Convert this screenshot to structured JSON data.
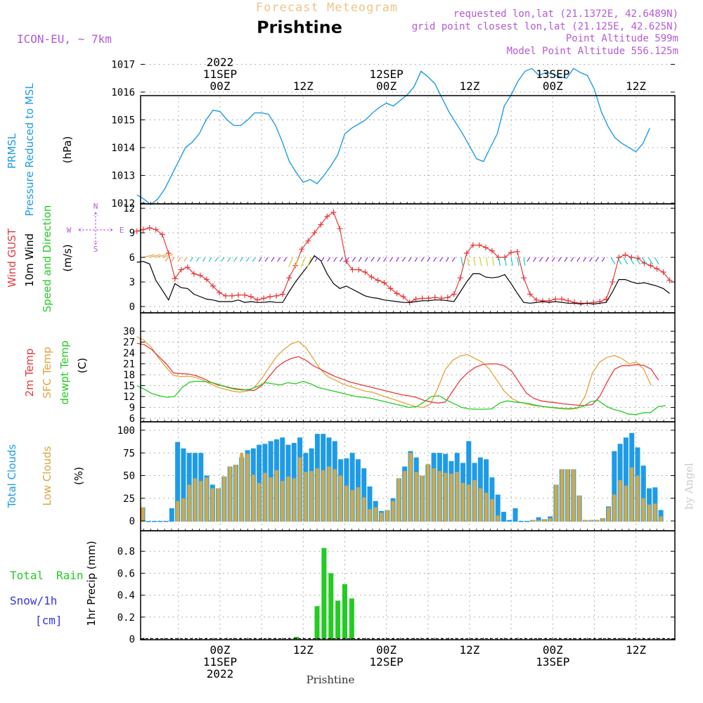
{
  "header": {
    "product": "Forecast Meteogram",
    "location": "Prishtine",
    "model": "ICON-EU, ~ 7km",
    "requested": "requested lon,lat (21.1372E, 42.6489N)",
    "grid_point": "grid point closest lon,lat (21.125E, 42.625N)",
    "point_altitude": "Point Altitude 599m",
    "model_altitude": "Model Point Altitude 556.125m",
    "footer_location": "Prishtine",
    "credit": "by Angel"
  },
  "colors": {
    "pressure": "#1e9be6",
    "gust": "#e8393a",
    "wind": "#000000",
    "temp": "#e8393a",
    "sfc_temp": "#e3a33c",
    "dewpt": "#22cc22",
    "total_clouds": "#1e9be6",
    "low_clouds": "#d4a843",
    "rain": "#22cc22",
    "snow": "#3333ee",
    "header_orange": "#f0c48a",
    "header_purple": "#b45ad6"
  },
  "time_axis": {
    "top_labels": [
      {
        "h": 24,
        "lines": [
          "2022",
          "11SEP",
          "00Z"
        ]
      },
      {
        "h": 36,
        "lines": [
          "12Z"
        ]
      },
      {
        "h": 48,
        "lines": [
          "12SEP",
          "00Z"
        ]
      },
      {
        "h": 60,
        "lines": [
          "12Z"
        ]
      },
      {
        "h": 72,
        "lines": [
          "13SEP",
          "00Z"
        ]
      },
      {
        "h": 84,
        "lines": [
          "12Z"
        ]
      }
    ],
    "bottom_labels": [
      {
        "h": 24,
        "lines": [
          "00Z",
          "11SEP",
          "2022"
        ]
      },
      {
        "h": 36,
        "lines": [
          "12Z"
        ]
      },
      {
        "h": 48,
        "lines": [
          "00Z",
          "12SEP"
        ]
      },
      {
        "h": 60,
        "lines": [
          "12Z"
        ]
      },
      {
        "h": 72,
        "lines": [
          "00Z",
          "13SEP"
        ]
      },
      {
        "h": 84,
        "lines": [
          "12Z"
        ]
      }
    ]
  },
  "chart_data": [
    {
      "type": "line",
      "title": "PRMSL Pressure Reduced to MSL",
      "ylabel": "(hPa)",
      "label_lines": [
        "PRMSL",
        "Pressure Reduced to MSL"
      ],
      "units": "(hPa)",
      "ylim": [
        1011.8,
        1017.15
      ],
      "yticks": [
        1012,
        1013,
        1014,
        1015,
        1016,
        1017
      ],
      "x_hours_start": 12,
      "series": [
        {
          "name": "PRMSL",
          "values": [
            1012.3,
            1012.15,
            1011.95,
            1012.15,
            1012.5,
            1013.0,
            1013.5,
            1014.0,
            1014.2,
            1014.5,
            1015.0,
            1015.35,
            1015.3,
            1015.0,
            1014.8,
            1014.8,
            1015.0,
            1015.25,
            1015.25,
            1015.2,
            1014.8,
            1014.2,
            1013.5,
            1013.1,
            1012.75,
            1012.85,
            1012.7,
            1013.0,
            1013.35,
            1013.75,
            1014.5,
            1014.7,
            1014.85,
            1015.0,
            1015.25,
            1015.45,
            1015.6,
            1015.5,
            1015.7,
            1015.9,
            1016.2,
            1016.75,
            1016.55,
            1016.3,
            1015.8,
            1015.3,
            1014.9,
            1014.5,
            1014.05,
            1013.6,
            1013.5,
            1014.0,
            1014.5,
            1015.5,
            1015.9,
            1016.4,
            1016.75,
            1016.85,
            1016.6,
            1016.7,
            1016.65,
            1016.55,
            1016.5,
            1016.85,
            1016.7,
            1016.6,
            1016.1,
            1015.3,
            1014.75,
            1014.35,
            1014.15,
            1014.0,
            1013.85,
            1014.15,
            1014.7
          ]
        }
      ]
    },
    {
      "type": "line",
      "title": "Wind GUST / 10m Wind Speed and Direction",
      "ylabel": "(m/s)",
      "label_lines": [
        "Wind GUST",
        "10m Wind",
        "Speed and Direction"
      ],
      "units": "(m/s)",
      "ylim": [
        0,
        12.3
      ],
      "yticks": [
        0,
        3,
        6,
        9,
        12
      ],
      "x_hours_start": 12,
      "compass": [
        "N",
        "W",
        "E",
        "S"
      ],
      "series": [
        {
          "name": "Wind GUST",
          "values": [
            9.2,
            9.4,
            9.6,
            9.4,
            8.8,
            6.5,
            3.4,
            4.5,
            4.8,
            4.0,
            3.8,
            3.3,
            2.5,
            1.7,
            1.3,
            1.3,
            1.4,
            1.4,
            1.2,
            0.8,
            1.0,
            1.2,
            1.3,
            1.5,
            3.5,
            5.0,
            7.0,
            8.0,
            9.0,
            10.0,
            11.0,
            11.5,
            9.5,
            5.5,
            4.5,
            4.5,
            4.2,
            3.6,
            3.2,
            2.9,
            2.2,
            1.6,
            1.2,
            0.5,
            0.9,
            1.0,
            1.0,
            1.1,
            1.0,
            1.1,
            1.5,
            3.5,
            6.5,
            7.5,
            7.5,
            7.2,
            6.8,
            6.0,
            6.0,
            6.6,
            6.7,
            3.5,
            1.5,
            0.8,
            0.7,
            0.7,
            0.9,
            0.9,
            0.7,
            0.5,
            0.4,
            0.4,
            0.5,
            0.6,
            0.9,
            3.0,
            6.0,
            6.3,
            6.0,
            5.9,
            5.3,
            5.0,
            4.6,
            4.2,
            3.2
          ]
        },
        {
          "name": "10m Wind",
          "values": [
            5.4,
            5.5,
            5.2,
            3.2,
            2.0,
            0.8,
            2.8,
            2.3,
            2.2,
            1.5,
            1.2,
            0.9,
            0.8,
            0.6,
            0.6,
            0.6,
            0.8,
            0.5,
            0.6,
            0.5,
            0.5,
            0.6,
            0.5,
            0.5,
            1.8,
            3.0,
            4.0,
            5.0,
            6.2,
            5.6,
            4.0,
            2.8,
            2.2,
            2.5,
            2.1,
            1.7,
            1.3,
            1.1,
            1.0,
            0.8,
            0.7,
            0.6,
            0.5,
            0.5,
            0.6,
            0.7,
            0.7,
            0.8,
            0.8,
            0.7,
            0.6,
            1.8,
            3.0,
            4.0,
            4.0,
            3.6,
            3.5,
            3.6,
            3.9,
            2.8,
            1.6,
            0.5,
            0.4,
            0.5,
            0.6,
            0.5,
            0.6,
            0.5,
            0.4,
            0.4,
            0.3,
            0.4,
            0.3,
            0.4,
            0.5,
            1.8,
            3.3,
            3.3,
            3.0,
            2.8,
            2.9,
            2.7,
            2.5,
            2.2,
            1.6
          ]
        }
      ]
    },
    {
      "type": "line",
      "title": "2m Temp / SFC Temp / dewpt Temp",
      "ylabel": "(C)",
      "label_lines": [
        "2m Temp",
        "SFC Temp",
        "dewpt Temp"
      ],
      "units": "(C)",
      "ylim": [
        6,
        30
      ],
      "yticks": [
        6,
        9,
        12,
        15,
        18,
        21,
        24,
        27,
        30
      ],
      "x_hours_start": 12,
      "series": [
        {
          "name": "2m Temp",
          "values": [
            26.7,
            26.3,
            25.0,
            23.0,
            21.0,
            18.5,
            18.3,
            18.2,
            17.8,
            17.0,
            16.0,
            15.2,
            14.8,
            14.3,
            14.0,
            13.8,
            13.7,
            15.0,
            17.5,
            20.0,
            21.5,
            22.5,
            23.0,
            22.0,
            20.5,
            19.5,
            18.5,
            17.5,
            16.8,
            16.0,
            15.5,
            15.0,
            14.5,
            14.0,
            13.5,
            13.0,
            12.5,
            12.2,
            11.8,
            11.0,
            10.5,
            10.2,
            10.5,
            13.5,
            16.5,
            18.5,
            20.0,
            20.8,
            21.0,
            21.0,
            20.5,
            19.0,
            16.0,
            13.0,
            11.5,
            10.8,
            10.5,
            10.3,
            10.0,
            9.8,
            9.6,
            9.5,
            9.8,
            12.0,
            16.0,
            19.5,
            20.5,
            20.5,
            20.8,
            20.6,
            19.5,
            16.5
          ]
        },
        {
          "name": "SFC Temp",
          "values": [
            28.5,
            27.5,
            25.5,
            22.5,
            20.0,
            17.8,
            17.5,
            17.6,
            17.3,
            16.5,
            15.5,
            14.6,
            14.0,
            13.5,
            13.2,
            13.5,
            14.5,
            17.0,
            20.0,
            23.0,
            25.0,
            26.5,
            27.2,
            25.5,
            22.5,
            19.5,
            17.5,
            16.5,
            15.5,
            14.8,
            14.2,
            13.5,
            13.2,
            12.5,
            11.8,
            11.2,
            10.5,
            9.8,
            9.2,
            9.0,
            10.0,
            14.5,
            19.5,
            22.0,
            23.2,
            23.6,
            22.5,
            21.5,
            19.5,
            16.5,
            13.5,
            11.5,
            10.5,
            10.0,
            9.5,
            9.3,
            9.0,
            8.8,
            8.6,
            8.5,
            8.8,
            12.0,
            18.5,
            21.5,
            22.8,
            23.3,
            22.5,
            21.0,
            21.5,
            19.5,
            15.0
          ]
        },
        {
          "name": "dewpt Temp",
          "values": [
            15.0,
            14.0,
            12.8,
            12.2,
            11.8,
            12.0,
            14.5,
            16.0,
            16.2,
            16.1,
            15.8,
            15.2,
            14.5,
            14.0,
            13.8,
            14.0,
            14.8,
            15.8,
            15.5,
            15.2,
            15.8,
            15.5,
            16.2,
            15.5,
            14.5,
            14.0,
            13.5,
            13.0,
            12.5,
            12.0,
            11.8,
            11.5,
            11.0,
            10.5,
            10.0,
            9.5,
            9.0,
            9.2,
            10.5,
            12.0,
            12.2,
            11.0,
            10.0,
            9.0,
            8.6,
            8.5,
            8.5,
            8.6,
            10.2,
            10.8,
            10.5,
            10.3,
            10.0,
            9.5,
            9.2,
            9.0,
            8.8,
            8.7,
            8.8,
            9.2,
            10.5,
            11.0,
            9.5,
            8.5,
            8.0,
            7.2,
            7.0,
            7.5,
            7.6,
            9.2,
            9.5
          ]
        }
      ]
    },
    {
      "type": "bar",
      "title": "Total Clouds / Low Clouds",
      "ylabel": "(%)",
      "label_lines": [
        "Total Clouds",
        "Low Clouds"
      ],
      "units": "(%)",
      "ylim": [
        -5,
        106
      ],
      "yticks": [
        0,
        25,
        50,
        75,
        100
      ],
      "x_hours_start": 12,
      "series": [
        {
          "name": "Total Clouds",
          "values": [
            55,
            15,
            0,
            0,
            0,
            0,
            14,
            87,
            80,
            75,
            75,
            75,
            50,
            40,
            36,
            49,
            60,
            62,
            70,
            78,
            80,
            84,
            85,
            88,
            90,
            92,
            84,
            86,
            92,
            75,
            80,
            96,
            96,
            92,
            88,
            68,
            69,
            75,
            68,
            58,
            38,
            22,
            11,
            12,
            25,
            47,
            60,
            77,
            70,
            50,
            62,
            75,
            75,
            74,
            66,
            75,
            64,
            88,
            64,
            70,
            68,
            48,
            29,
            10,
            1,
            14,
            0,
            0,
            1,
            4,
            2,
            5,
            40,
            57,
            57,
            57,
            28,
            1,
            1,
            1,
            3,
            16,
            77,
            85,
            92,
            97,
            81,
            61,
            36,
            37,
            12
          ]
        },
        {
          "name": "Low Clouds",
          "values": [
            48,
            15,
            0,
            0,
            0,
            0,
            0,
            22,
            25,
            40,
            47,
            44,
            48,
            36,
            36,
            49,
            60,
            62,
            75,
            74,
            51,
            42,
            53,
            48,
            56,
            44,
            49,
            47,
            70,
            54,
            55,
            58,
            56,
            60,
            57,
            50,
            39,
            34,
            37,
            26,
            13,
            15,
            9,
            12,
            22,
            47,
            55,
            75,
            54,
            50,
            63,
            58,
            55,
            53,
            52,
            54,
            42,
            40,
            45,
            36,
            31,
            24,
            6,
            0,
            0,
            0,
            0,
            0,
            1,
            1,
            2,
            3,
            40,
            57,
            57,
            57,
            28,
            1,
            1,
            1,
            3,
            15,
            29,
            45,
            39,
            59,
            50,
            25,
            18,
            19,
            5
          ]
        }
      ]
    },
    {
      "type": "bar",
      "title": "1hr Precip (mm)",
      "ylabel": "1hr Precip (mm)",
      "label_lines": [
        "Total",
        "Rain",
        "Snow/1h",
        "[cm]"
      ],
      "units": "1hr Precip (mm)",
      "ylim": [
        0,
        0.94
      ],
      "yticks": [
        0,
        0.2,
        0.4,
        0.6,
        0.8
      ],
      "x_hours_start": 12,
      "series": [
        {
          "name": "Total Rain",
          "values": [
            0,
            0,
            0,
            0,
            0,
            0,
            0,
            0,
            0,
            0,
            0,
            0,
            0,
            0,
            0,
            0,
            0,
            0,
            0,
            0,
            0,
            0,
            0,
            0.02,
            0,
            0,
            0.3,
            0.83,
            0.6,
            0.35,
            0.5,
            0.37
          ]
        },
        {
          "name": "Snow/1h",
          "values": []
        }
      ]
    }
  ]
}
